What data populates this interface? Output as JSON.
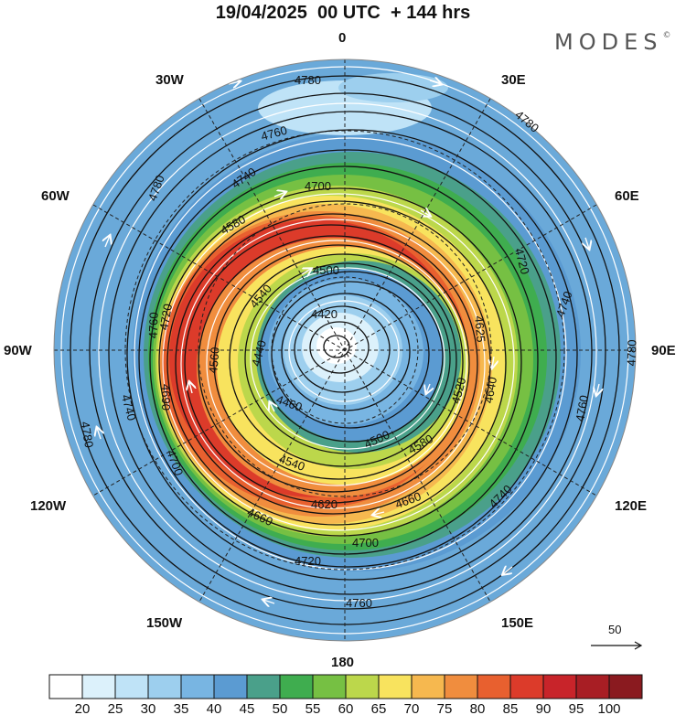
{
  "title": "19/04/2025  00 UTC  + 144 hrs",
  "brand": "MODES",
  "brand_mark": "©",
  "longitude_labels": {
    "top": "0",
    "bottom": "180",
    "left": "90W",
    "right": "90E",
    "w30": "30W",
    "e30": "30E",
    "w60": "60W",
    "e60": "60E",
    "w120": "120W",
    "e120": "120E",
    "w150": "150W",
    "e150": "150E"
  },
  "vector_reference": "50",
  "contour_labels": {
    "c4780a": "4780",
    "c4780b": "4780",
    "c4780c": "4780",
    "c4780d": "4780",
    "c4780e": "4780",
    "c4760a": "4760",
    "c4760b": "4760",
    "c4760c": "4760",
    "c4760d": "4760",
    "c4740a": "4740",
    "c4740b": "4740",
    "c4740c": "4740",
    "c4740d": "4740",
    "c4720a": "4720",
    "c4720b": "4720",
    "c4720c": "4720",
    "c4700a": "4700",
    "c4700b": "4700",
    "c4700c": "4700",
    "c4660a": "4660",
    "c4660b": "4660",
    "c4620": "4620",
    "c4580a": "4580",
    "c4580b": "4580",
    "c4560": "4560",
    "c4540a": "4540",
    "c4540b": "4540",
    "c4520": "4520",
    "c4500a": "4500",
    "c4500b": "4500",
    "c4460": "4460",
    "c4420": "4420",
    "c4440": "4440",
    "c4690": "4690",
    "c4640": "4640",
    "c4625": "4625"
  },
  "colorbar": {
    "labels": [
      "20",
      "25",
      "30",
      "35",
      "40",
      "45",
      "50",
      "55",
      "60",
      "65",
      "70",
      "75",
      "80",
      "85",
      "90",
      "95",
      "100"
    ],
    "colors": [
      "#ffffff",
      "#dcf1fb",
      "#bfe3f7",
      "#9dcfee",
      "#78b5e2",
      "#5b9bd2",
      "#4aa08a",
      "#3fad4f",
      "#76c043",
      "#bcd74b",
      "#f8e35e",
      "#f6b84f",
      "#f08d3e",
      "#e8602f",
      "#dc3b2a",
      "#c8242a",
      "#a81e24",
      "#8a1a1f"
    ]
  }
}
